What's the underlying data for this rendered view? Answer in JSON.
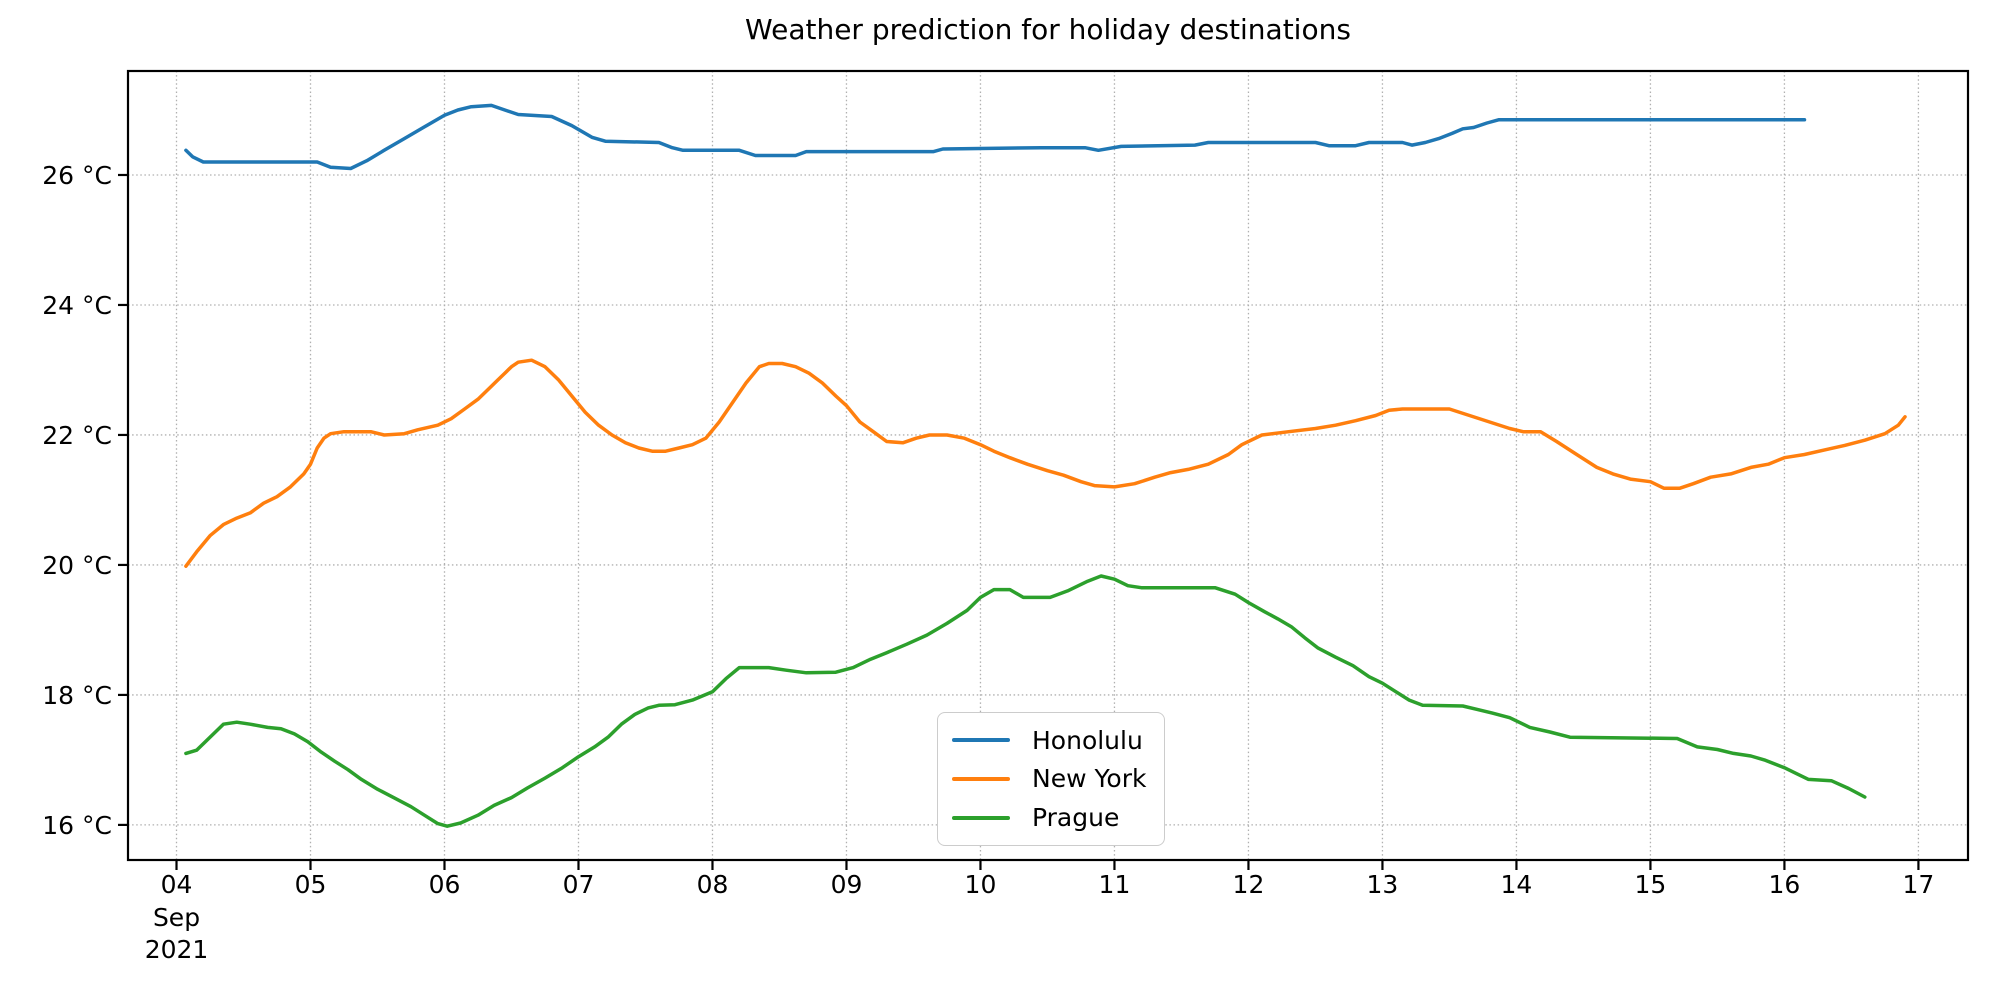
{
  "title": "Weather prediction for holiday destinations",
  "colors": {
    "background": "#ffffff",
    "axis": "#000000",
    "grid": "#b0b0b0",
    "tick_label": "#000000",
    "honolulu": "#1f77b4",
    "new_york": "#ff7f0e",
    "prague": "#2ca02c"
  },
  "chart_data": {
    "type": "line",
    "title": "Weather prediction for holiday destinations",
    "xlabel": "",
    "ylabel": "",
    "grid": "dotted",
    "legend_position": "lower center-right",
    "x_axis": {
      "unit": "day of September 2021",
      "tick_values": [
        4,
        5,
        6,
        7,
        8,
        9,
        10,
        11,
        12,
        13,
        14,
        15,
        16,
        17
      ],
      "tick_labels": [
        "04",
        "05",
        "06",
        "07",
        "08",
        "09",
        "10",
        "11",
        "12",
        "13",
        "14",
        "15",
        "16",
        "17"
      ],
      "offset_label_lines": [
        "Sep",
        "2021"
      ],
      "range": [
        3.638,
        17.37
      ]
    },
    "y_axis": {
      "tick_values": [
        16,
        18,
        20,
        22,
        24,
        26
      ],
      "tick_labels": [
        "16 °C",
        "18 °C",
        "20 °C",
        "22 °C",
        "24 °C",
        "26 °C"
      ],
      "range": [
        15.46,
        27.6
      ]
    },
    "series": [
      {
        "name": "Honolulu",
        "color": "#1f77b4",
        "points": [
          [
            4.07,
            26.38
          ],
          [
            4.12,
            26.28
          ],
          [
            4.2,
            26.2
          ],
          [
            5.05,
            26.2
          ],
          [
            5.15,
            26.12
          ],
          [
            5.3,
            26.1
          ],
          [
            5.42,
            26.22
          ],
          [
            5.55,
            26.38
          ],
          [
            5.7,
            26.56
          ],
          [
            5.85,
            26.74
          ],
          [
            6.0,
            26.92
          ],
          [
            6.1,
            27.0
          ],
          [
            6.2,
            27.05
          ],
          [
            6.35,
            27.07
          ],
          [
            6.45,
            27.0
          ],
          [
            6.55,
            26.93
          ],
          [
            6.8,
            26.9
          ],
          [
            6.95,
            26.76
          ],
          [
            7.1,
            26.58
          ],
          [
            7.2,
            26.52
          ],
          [
            7.6,
            26.5
          ],
          [
            7.7,
            26.42
          ],
          [
            7.78,
            26.38
          ],
          [
            8.2,
            26.38
          ],
          [
            8.32,
            26.3
          ],
          [
            8.62,
            26.3
          ],
          [
            8.7,
            26.36
          ],
          [
            9.65,
            26.36
          ],
          [
            9.72,
            26.4
          ],
          [
            10.45,
            26.42
          ],
          [
            10.78,
            26.42
          ],
          [
            10.88,
            26.38
          ],
          [
            11.05,
            26.44
          ],
          [
            11.6,
            26.46
          ],
          [
            11.7,
            26.5
          ],
          [
            12.5,
            26.5
          ],
          [
            12.6,
            26.45
          ],
          [
            12.8,
            26.45
          ],
          [
            12.9,
            26.5
          ],
          [
            13.15,
            26.5
          ],
          [
            13.22,
            26.46
          ],
          [
            13.32,
            26.5
          ],
          [
            13.42,
            26.56
          ],
          [
            13.52,
            26.64
          ],
          [
            13.6,
            26.71
          ],
          [
            13.68,
            26.73
          ],
          [
            13.78,
            26.8
          ],
          [
            13.87,
            26.85
          ],
          [
            16.15,
            26.85
          ]
        ]
      },
      {
        "name": "New York",
        "color": "#ff7f0e",
        "points": [
          [
            4.07,
            19.98
          ],
          [
            4.15,
            20.2
          ],
          [
            4.25,
            20.45
          ],
          [
            4.35,
            20.62
          ],
          [
            4.45,
            20.72
          ],
          [
            4.55,
            20.8
          ],
          [
            4.65,
            20.95
          ],
          [
            4.75,
            21.05
          ],
          [
            4.85,
            21.2
          ],
          [
            4.95,
            21.4
          ],
          [
            5.0,
            21.55
          ],
          [
            5.05,
            21.8
          ],
          [
            5.1,
            21.95
          ],
          [
            5.15,
            22.02
          ],
          [
            5.25,
            22.05
          ],
          [
            5.45,
            22.05
          ],
          [
            5.55,
            22.0
          ],
          [
            5.7,
            22.02
          ],
          [
            5.8,
            22.08
          ],
          [
            5.95,
            22.15
          ],
          [
            6.05,
            22.25
          ],
          [
            6.15,
            22.4
          ],
          [
            6.25,
            22.55
          ],
          [
            6.35,
            22.75
          ],
          [
            6.45,
            22.95
          ],
          [
            6.5,
            23.05
          ],
          [
            6.55,
            23.12
          ],
          [
            6.65,
            23.15
          ],
          [
            6.75,
            23.05
          ],
          [
            6.85,
            22.85
          ],
          [
            6.95,
            22.6
          ],
          [
            7.05,
            22.35
          ],
          [
            7.15,
            22.15
          ],
          [
            7.25,
            22.0
          ],
          [
            7.35,
            21.88
          ],
          [
            7.45,
            21.8
          ],
          [
            7.55,
            21.75
          ],
          [
            7.65,
            21.75
          ],
          [
            7.75,
            21.8
          ],
          [
            7.85,
            21.85
          ],
          [
            7.95,
            21.95
          ],
          [
            8.05,
            22.2
          ],
          [
            8.15,
            22.5
          ],
          [
            8.25,
            22.8
          ],
          [
            8.35,
            23.05
          ],
          [
            8.42,
            23.1
          ],
          [
            8.52,
            23.1
          ],
          [
            8.62,
            23.05
          ],
          [
            8.72,
            22.95
          ],
          [
            8.82,
            22.8
          ],
          [
            8.92,
            22.6
          ],
          [
            9.0,
            22.45
          ],
          [
            9.1,
            22.2
          ],
          [
            9.2,
            22.05
          ],
          [
            9.3,
            21.9
          ],
          [
            9.42,
            21.88
          ],
          [
            9.52,
            21.95
          ],
          [
            9.62,
            22.0
          ],
          [
            9.75,
            22.0
          ],
          [
            9.88,
            21.95
          ],
          [
            10.0,
            21.85
          ],
          [
            10.1,
            21.75
          ],
          [
            10.22,
            21.65
          ],
          [
            10.35,
            21.55
          ],
          [
            10.5,
            21.45
          ],
          [
            10.62,
            21.38
          ],
          [
            10.75,
            21.28
          ],
          [
            10.85,
            21.22
          ],
          [
            11.0,
            21.2
          ],
          [
            11.15,
            21.25
          ],
          [
            11.3,
            21.35
          ],
          [
            11.42,
            21.42
          ],
          [
            11.55,
            21.47
          ],
          [
            11.7,
            21.55
          ],
          [
            11.85,
            21.7
          ],
          [
            11.95,
            21.85
          ],
          [
            12.1,
            22.0
          ],
          [
            12.3,
            22.05
          ],
          [
            12.5,
            22.1
          ],
          [
            12.65,
            22.15
          ],
          [
            12.8,
            22.22
          ],
          [
            12.95,
            22.3
          ],
          [
            13.05,
            22.38
          ],
          [
            13.15,
            22.4
          ],
          [
            13.5,
            22.4
          ],
          [
            13.65,
            22.3
          ],
          [
            13.8,
            22.2
          ],
          [
            13.95,
            22.1
          ],
          [
            14.05,
            22.05
          ],
          [
            14.18,
            22.05
          ],
          [
            14.3,
            21.9
          ],
          [
            14.45,
            21.7
          ],
          [
            14.6,
            21.5
          ],
          [
            14.72,
            21.4
          ],
          [
            14.85,
            21.32
          ],
          [
            15.0,
            21.28
          ],
          [
            15.1,
            21.18
          ],
          [
            15.22,
            21.18
          ],
          [
            15.32,
            21.25
          ],
          [
            15.45,
            21.35
          ],
          [
            15.6,
            21.4
          ],
          [
            15.75,
            21.5
          ],
          [
            15.88,
            21.55
          ],
          [
            16.0,
            21.65
          ],
          [
            16.15,
            21.7
          ],
          [
            16.3,
            21.77
          ],
          [
            16.45,
            21.84
          ],
          [
            16.6,
            21.92
          ],
          [
            16.75,
            22.02
          ],
          [
            16.85,
            22.15
          ],
          [
            16.9,
            22.28
          ]
        ]
      },
      {
        "name": "Prague",
        "color": "#2ca02c",
        "points": [
          [
            4.07,
            17.1
          ],
          [
            4.15,
            17.15
          ],
          [
            4.25,
            17.35
          ],
          [
            4.35,
            17.55
          ],
          [
            4.45,
            17.58
          ],
          [
            4.55,
            17.55
          ],
          [
            4.68,
            17.5
          ],
          [
            4.78,
            17.48
          ],
          [
            4.88,
            17.4
          ],
          [
            4.98,
            17.28
          ],
          [
            5.08,
            17.12
          ],
          [
            5.18,
            16.98
          ],
          [
            5.28,
            16.85
          ],
          [
            5.38,
            16.7
          ],
          [
            5.5,
            16.55
          ],
          [
            5.62,
            16.42
          ],
          [
            5.75,
            16.28
          ],
          [
            5.85,
            16.15
          ],
          [
            5.95,
            16.02
          ],
          [
            6.02,
            15.98
          ],
          [
            6.12,
            16.03
          ],
          [
            6.25,
            16.15
          ],
          [
            6.37,
            16.3
          ],
          [
            6.5,
            16.42
          ],
          [
            6.62,
            16.57
          ],
          [
            6.75,
            16.72
          ],
          [
            6.88,
            16.88
          ],
          [
            7.0,
            17.05
          ],
          [
            7.12,
            17.2
          ],
          [
            7.22,
            17.35
          ],
          [
            7.32,
            17.55
          ],
          [
            7.42,
            17.7
          ],
          [
            7.52,
            17.8
          ],
          [
            7.6,
            17.84
          ],
          [
            7.72,
            17.85
          ],
          [
            7.85,
            17.92
          ],
          [
            8.0,
            18.05
          ],
          [
            8.1,
            18.25
          ],
          [
            8.2,
            18.42
          ],
          [
            8.42,
            18.42
          ],
          [
            8.55,
            18.38
          ],
          [
            8.7,
            18.34
          ],
          [
            8.92,
            18.35
          ],
          [
            9.05,
            18.42
          ],
          [
            9.18,
            18.55
          ],
          [
            9.3,
            18.65
          ],
          [
            9.45,
            18.78
          ],
          [
            9.6,
            18.92
          ],
          [
            9.75,
            19.1
          ],
          [
            9.9,
            19.3
          ],
          [
            10.0,
            19.5
          ],
          [
            10.1,
            19.62
          ],
          [
            10.22,
            19.62
          ],
          [
            10.32,
            19.5
          ],
          [
            10.52,
            19.5
          ],
          [
            10.65,
            19.6
          ],
          [
            10.8,
            19.75
          ],
          [
            10.9,
            19.83
          ],
          [
            11.0,
            19.78
          ],
          [
            11.1,
            19.68
          ],
          [
            11.2,
            19.65
          ],
          [
            11.75,
            19.65
          ],
          [
            11.9,
            19.55
          ],
          [
            12.0,
            19.42
          ],
          [
            12.12,
            19.28
          ],
          [
            12.22,
            19.17
          ],
          [
            12.32,
            19.05
          ],
          [
            12.42,
            18.88
          ],
          [
            12.52,
            18.72
          ],
          [
            12.65,
            18.58
          ],
          [
            12.78,
            18.45
          ],
          [
            12.9,
            18.28
          ],
          [
            13.0,
            18.18
          ],
          [
            13.1,
            18.05
          ],
          [
            13.2,
            17.92
          ],
          [
            13.3,
            17.84
          ],
          [
            13.6,
            17.83
          ],
          [
            13.7,
            17.78
          ],
          [
            13.82,
            17.72
          ],
          [
            13.95,
            17.65
          ],
          [
            14.1,
            17.5
          ],
          [
            14.25,
            17.43
          ],
          [
            14.4,
            17.35
          ],
          [
            15.2,
            17.33
          ],
          [
            15.35,
            17.2
          ],
          [
            15.5,
            17.16
          ],
          [
            15.62,
            17.1
          ],
          [
            15.75,
            17.06
          ],
          [
            15.85,
            17.0
          ],
          [
            16.0,
            16.88
          ],
          [
            16.08,
            16.8
          ],
          [
            16.18,
            16.7
          ],
          [
            16.35,
            16.68
          ],
          [
            16.48,
            16.56
          ],
          [
            16.6,
            16.43
          ]
        ]
      }
    ]
  }
}
